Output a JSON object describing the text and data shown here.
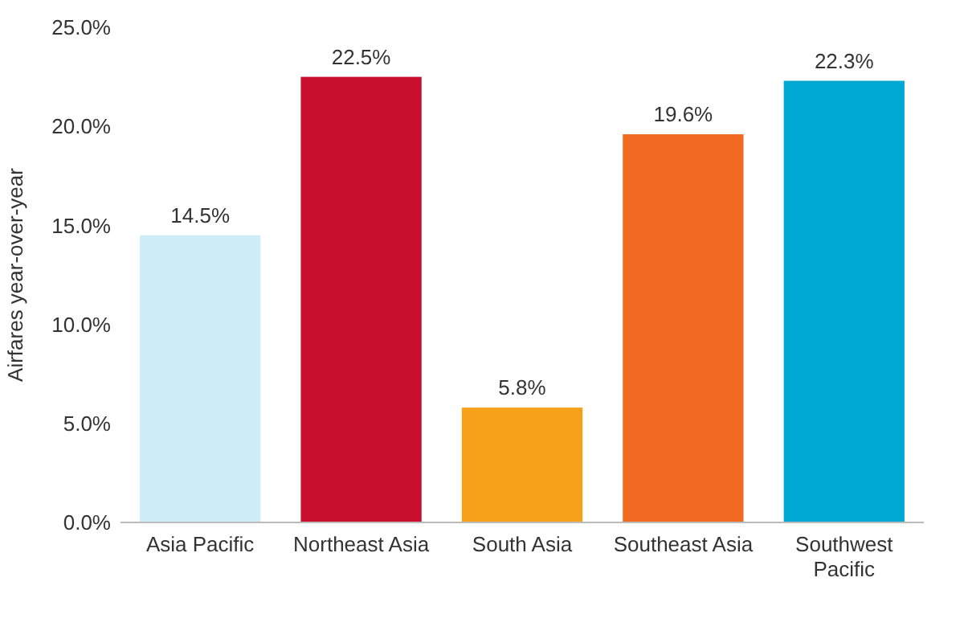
{
  "chart_data": {
    "type": "bar",
    "ylabel": "Airfares year-over-year",
    "categories": [
      "Asia Pacific",
      "Northeast Asia",
      "South Asia",
      "Southeast Asia",
      "Southwest Pacific"
    ],
    "values": [
      14.5,
      22.5,
      5.8,
      19.6,
      22.3
    ],
    "colors": [
      "#cdeef7",
      "#c8102e",
      "#f7a11a",
      "#f26a21",
      "#00a9d4"
    ],
    "value_labels": [
      "14.5%",
      "22.5%",
      "5.8%",
      "19.6%",
      "22.3%"
    ],
    "ylim": [
      0,
      25
    ],
    "yticks": [
      {
        "value": 0,
        "label": "0.0%"
      },
      {
        "value": 5,
        "label": "5.0%"
      },
      {
        "value": 10,
        "label": "10.0%"
      },
      {
        "value": 15,
        "label": "15.0%"
      },
      {
        "value": 20,
        "label": "20.0%"
      },
      {
        "value": 25,
        "label": "25.0%"
      }
    ],
    "grid": false
  }
}
